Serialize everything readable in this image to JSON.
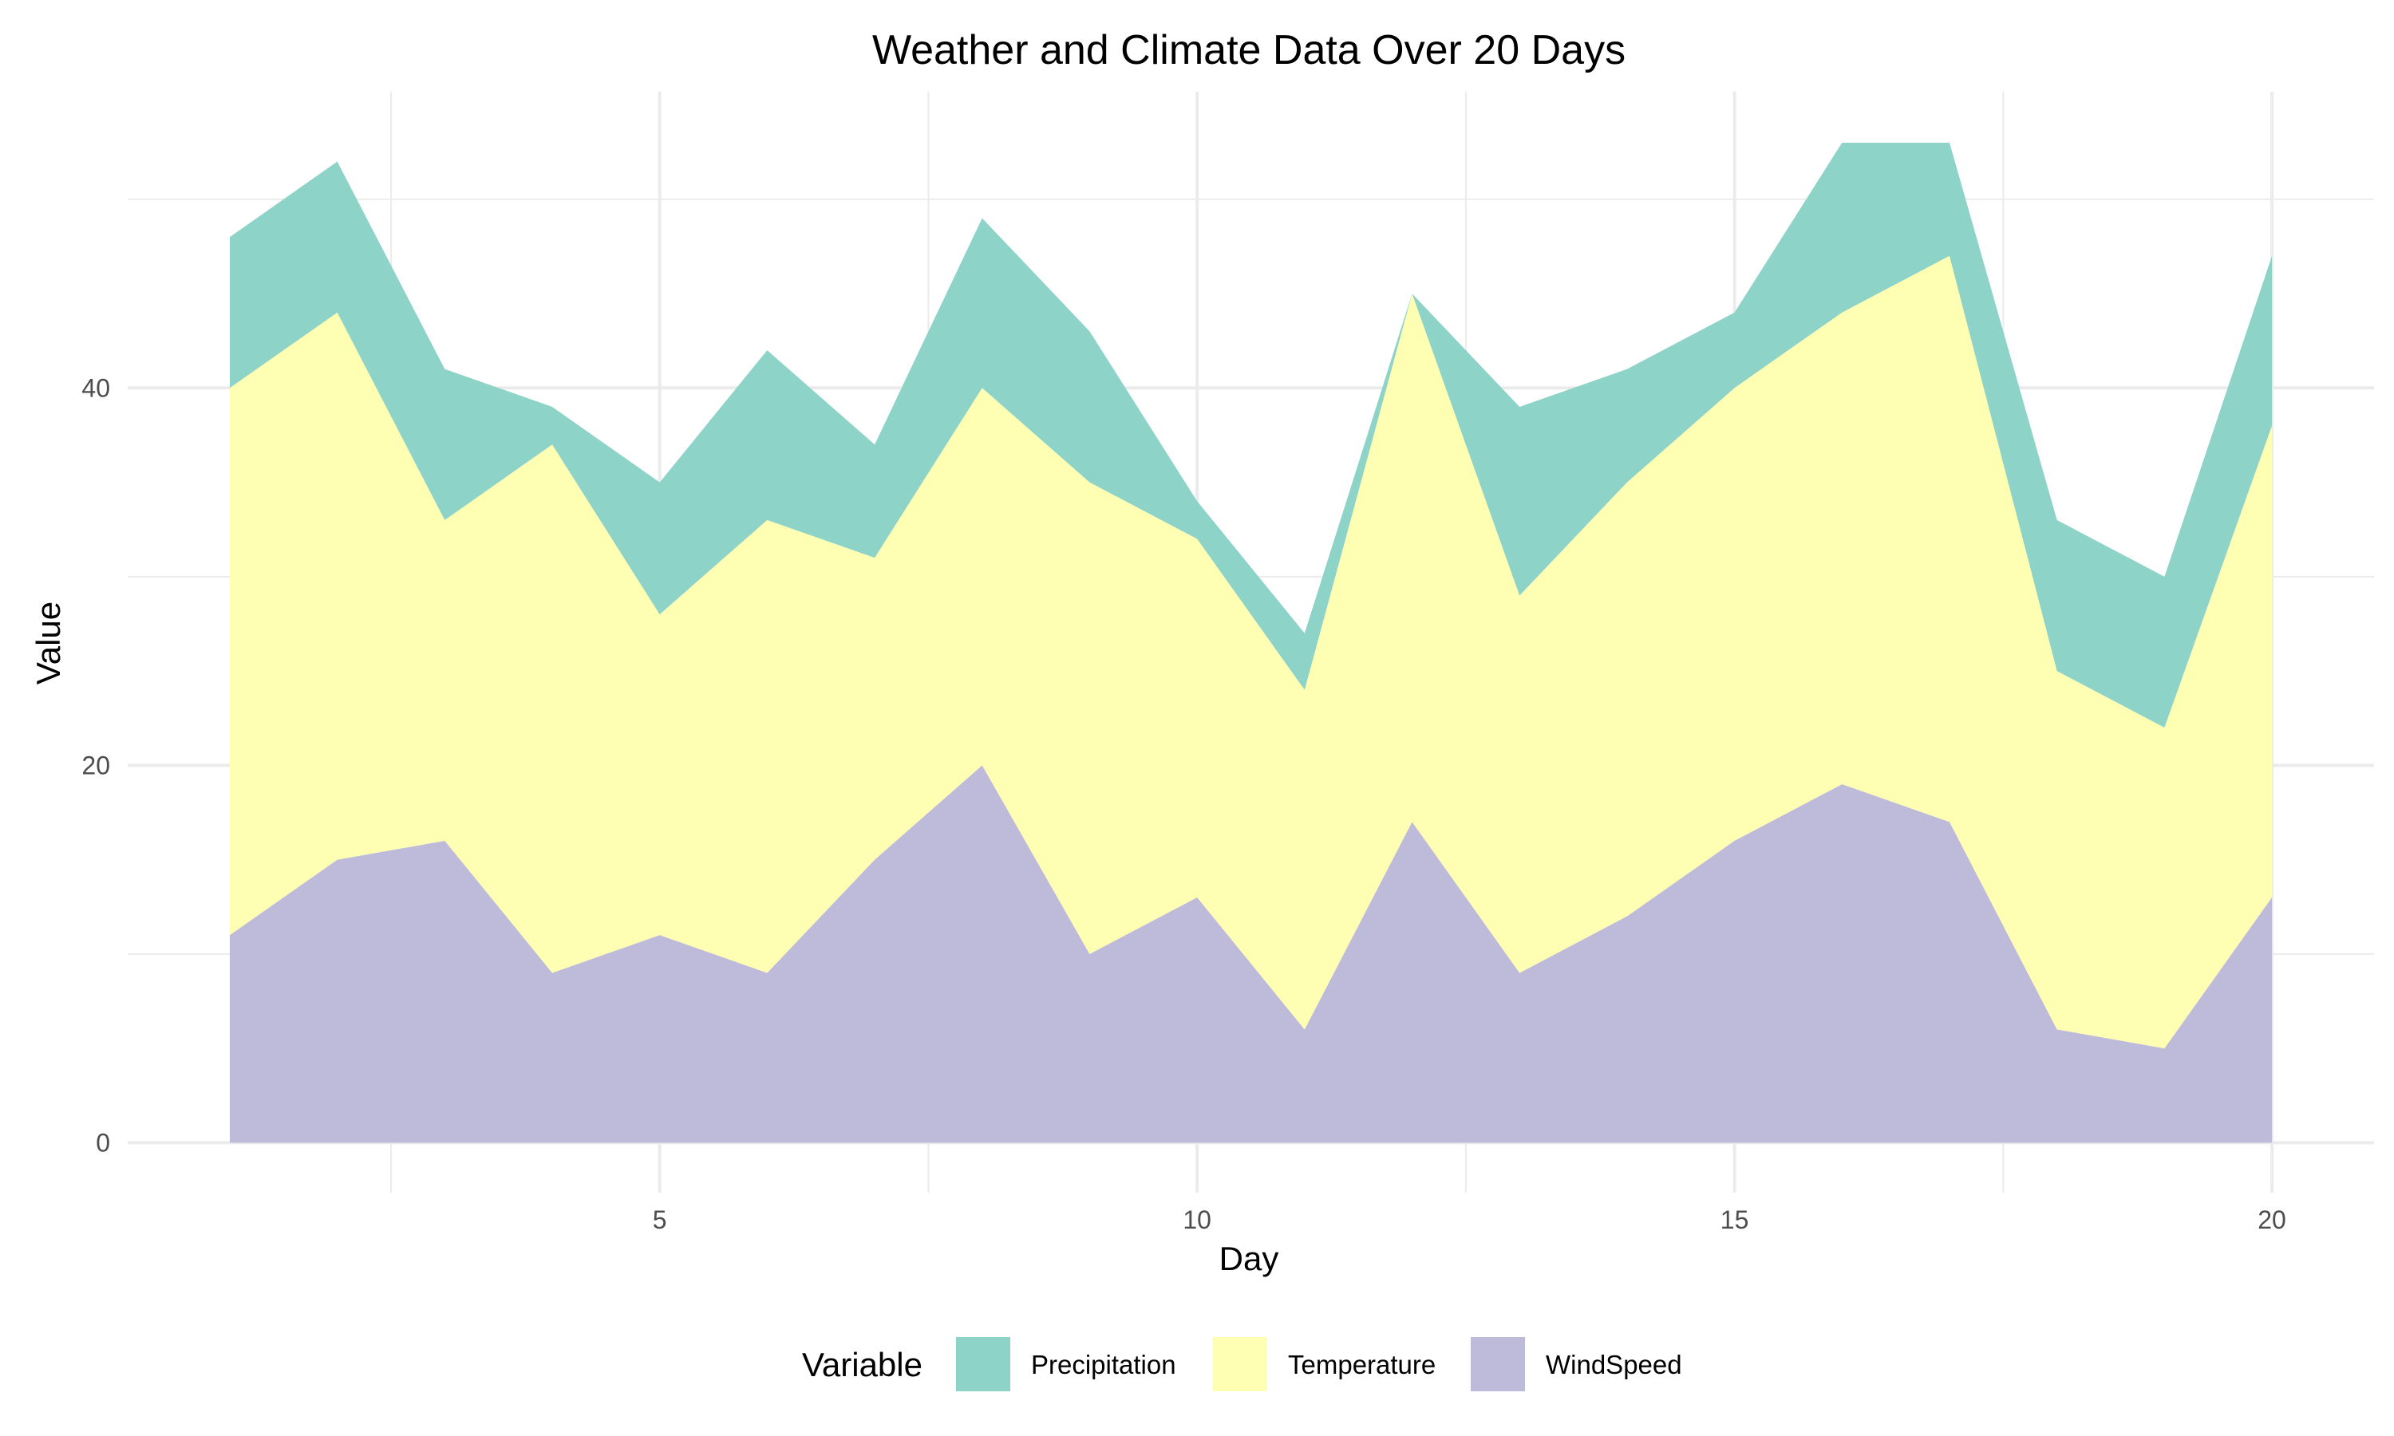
{
  "chart_data": {
    "type": "area",
    "stacked": true,
    "title": "Weather and Climate Data Over 20 Days",
    "xlabel": "Day",
    "ylabel": "Value",
    "x": [
      1,
      2,
      3,
      4,
      5,
      6,
      7,
      8,
      9,
      10,
      11,
      12,
      13,
      14,
      15,
      16,
      17,
      18,
      19,
      20
    ],
    "xlim": [
      0.05,
      20.95
    ],
    "ylim": [
      -2.65,
      55.7
    ],
    "x_ticks": [
      5,
      10,
      15,
      20
    ],
    "y_ticks": [
      0,
      20,
      40
    ],
    "grid": true,
    "legend_position": "bottom",
    "legend_title": "Variable",
    "series": [
      {
        "name": "WindSpeed",
        "color": "#bebada",
        "values": [
          11,
          15,
          16,
          9,
          11,
          9,
          15,
          20,
          10,
          13,
          6,
          17,
          9,
          12,
          16,
          19,
          17,
          6,
          5,
          13
        ]
      },
      {
        "name": "Temperature",
        "color": "#ffffb3",
        "values": [
          29,
          29,
          17,
          28,
          17,
          24,
          16,
          20,
          25,
          19,
          18,
          28,
          20,
          23,
          24,
          25,
          30,
          19,
          17,
          25
        ]
      },
      {
        "name": "Precipitation",
        "color": "#8dd3c7",
        "values": [
          8,
          8,
          8,
          2,
          7,
          9,
          6,
          9,
          8,
          2,
          3,
          0,
          10,
          6,
          4,
          9,
          6,
          8,
          8,
          9
        ]
      }
    ],
    "legend_order": [
      "Precipitation",
      "Temperature",
      "WindSpeed"
    ]
  }
}
